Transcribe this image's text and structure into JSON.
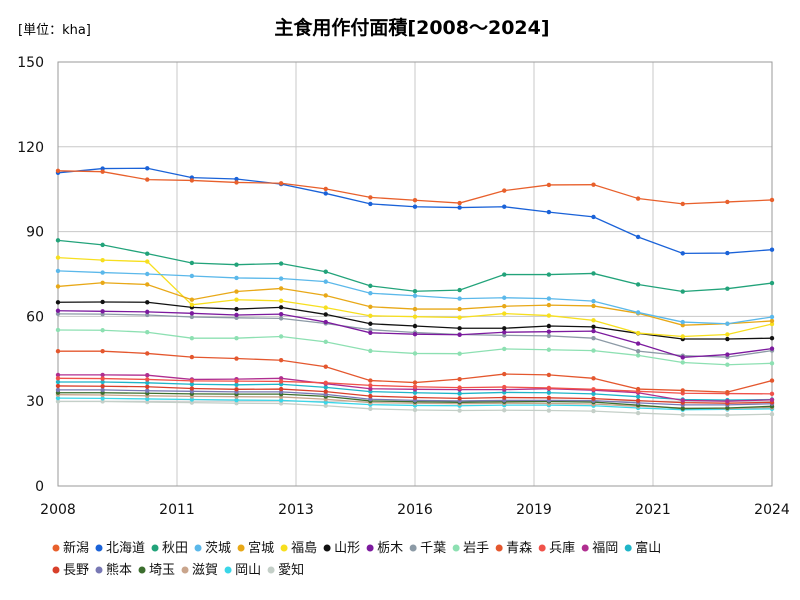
{
  "chart_data": {
    "type": "line",
    "title": "主食用作付面積[2008～2024]",
    "unit_label": "[単位：kha]",
    "x_ticks": [
      "2008",
      "2011",
      "2013",
      "2016",
      "2019",
      "2021",
      "2024"
    ],
    "x": [
      2008,
      2009,
      2010,
      2011,
      2012,
      2013,
      2014,
      2015,
      2016,
      2017,
      2018,
      2019,
      2020,
      2021,
      2022,
      2023,
      2024
    ],
    "xlim": [
      2008,
      2024
    ],
    "y_ticks": [
      "0",
      "30",
      "60",
      "90",
      "120",
      "150"
    ],
    "ylim": [
      0,
      150
    ],
    "grid": true,
    "legend_position": "bottom",
    "series": [
      {
        "name": "新潟",
        "color": "#e8602c",
        "values": [
          111.5,
          111.2,
          108.4,
          108.1,
          107.4,
          107.1,
          105.1,
          102.1,
          101.1,
          100.1,
          104.5,
          106.5,
          106.6,
          101.7,
          99.8,
          100.5,
          101.2
        ]
      },
      {
        "name": "北海道",
        "color": "#1a62d8",
        "values": [
          110.8,
          112.3,
          112.4,
          109.1,
          108.6,
          106.8,
          103.5,
          99.8,
          98.8,
          98.5,
          98.8,
          96.9,
          95.2,
          88.1,
          82.3,
          82.4,
          83.6
        ]
      },
      {
        "name": "秋田",
        "color": "#22a37a",
        "values": [
          86.9,
          85.3,
          82.2,
          78.9,
          78.3,
          78.7,
          75.8,
          70.8,
          68.9,
          69.3,
          74.8,
          74.8,
          75.2,
          71.3,
          68.8,
          69.8,
          71.8
        ]
      },
      {
        "name": "茨城",
        "color": "#5bb8ea",
        "values": [
          76.1,
          75.5,
          75.0,
          74.3,
          73.6,
          73.4,
          72.3,
          68.2,
          67.3,
          66.3,
          66.6,
          66.3,
          65.4,
          61.4,
          58.0,
          57.4,
          59.8
        ]
      },
      {
        "name": "宮城",
        "color": "#e8a817",
        "values": [
          70.6,
          71.9,
          71.3,
          65.9,
          68.8,
          69.9,
          67.4,
          63.4,
          62.6,
          62.6,
          63.6,
          64.0,
          63.7,
          61.1,
          56.9,
          57.4,
          58.4
        ]
      },
      {
        "name": "福島",
        "color": "#f7df1e",
        "values": [
          80.8,
          79.9,
          79.4,
          64.1,
          65.9,
          65.5,
          63.1,
          60.2,
          59.9,
          59.6,
          61.0,
          60.3,
          58.6,
          54.1,
          52.9,
          53.6,
          57.3
        ]
      },
      {
        "name": "山形",
        "color": "#111111",
        "values": [
          65.0,
          65.1,
          65.0,
          63.2,
          62.6,
          63.2,
          60.7,
          57.4,
          56.6,
          55.8,
          55.8,
          56.6,
          56.3,
          54.0,
          52.0,
          52.0,
          52.3
        ]
      },
      {
        "name": "栃木",
        "color": "#7c1a9e",
        "values": [
          62.0,
          61.8,
          61.6,
          61.1,
          60.5,
          60.8,
          58.0,
          54.2,
          53.7,
          53.5,
          54.4,
          54.6,
          54.8,
          50.4,
          45.5,
          46.5,
          48.6
        ]
      },
      {
        "name": "千葉",
        "color": "#8c9aa6",
        "values": [
          60.9,
          60.8,
          60.5,
          59.8,
          59.5,
          59.3,
          57.5,
          55.3,
          54.3,
          53.6,
          53.3,
          53.1,
          52.3,
          47.7,
          46.1,
          45.6,
          47.9
        ]
      },
      {
        "name": "岩手",
        "color": "#8de0b2",
        "values": [
          55.2,
          55.1,
          54.4,
          52.3,
          52.3,
          52.9,
          51.0,
          47.8,
          46.9,
          46.8,
          48.5,
          48.2,
          47.9,
          46.2,
          43.7,
          42.9,
          43.4
        ]
      },
      {
        "name": "青森",
        "color": "#e4572e",
        "values": [
          47.7,
          47.7,
          46.9,
          45.6,
          45.1,
          44.5,
          42.2,
          37.3,
          36.6,
          37.8,
          39.6,
          39.3,
          38.1,
          34.3,
          33.8,
          33.2,
          37.3
        ]
      },
      {
        "name": "兵庫",
        "color": "#f0524a",
        "values": [
          38.1,
          38.0,
          37.7,
          37.2,
          37.1,
          37.0,
          36.5,
          35.6,
          35.1,
          34.8,
          35.0,
          34.7,
          34.2,
          33.5,
          32.8,
          32.7,
          32.6
        ]
      },
      {
        "name": "福岡",
        "color": "#b02e90",
        "values": [
          39.3,
          39.3,
          39.2,
          37.7,
          37.8,
          38.1,
          36.2,
          34.4,
          34.2,
          34.1,
          34.1,
          34.4,
          33.9,
          33.0,
          30.3,
          30.0,
          30.5
        ]
      },
      {
        "name": "富山",
        "color": "#1fb5c8",
        "values": [
          36.8,
          36.8,
          36.5,
          36.0,
          35.8,
          36.0,
          34.9,
          33.4,
          33.0,
          32.7,
          33.1,
          33.0,
          32.6,
          31.6,
          30.6,
          30.4,
          30.6
        ]
      },
      {
        "name": "長野",
        "color": "#d8402a",
        "values": [
          35.4,
          35.3,
          35.1,
          34.5,
          34.2,
          34.3,
          33.4,
          31.8,
          31.3,
          31.0,
          31.3,
          31.2,
          30.9,
          30.2,
          29.5,
          29.3,
          29.6
        ]
      },
      {
        "name": "熊本",
        "color": "#7878b4",
        "values": [
          34.0,
          34.0,
          33.7,
          33.5,
          33.3,
          33.3,
          32.4,
          30.7,
          30.3,
          30.1,
          30.3,
          30.3,
          30.2,
          29.4,
          28.7,
          28.7,
          29.1
        ]
      },
      {
        "name": "埼玉",
        "color": "#3c6e2e",
        "values": [
          33.0,
          33.0,
          32.8,
          32.6,
          32.5,
          32.5,
          31.7,
          30.1,
          29.8,
          29.6,
          29.8,
          29.9,
          29.7,
          28.6,
          27.4,
          27.6,
          28.2
        ]
      },
      {
        "name": "滋賀",
        "color": "#c9a58c",
        "values": [
          32.3,
          32.2,
          31.9,
          31.7,
          31.6,
          31.5,
          30.7,
          29.5,
          29.3,
          29.1,
          29.3,
          29.2,
          29.0,
          28.2,
          27.6,
          27.4,
          27.8
        ]
      },
      {
        "name": "岡山",
        "color": "#3ad6e8",
        "values": [
          31.1,
          31.0,
          30.8,
          30.6,
          30.4,
          30.3,
          29.6,
          28.8,
          28.5,
          28.4,
          28.6,
          28.6,
          28.4,
          27.6,
          27.0,
          27.1,
          27.3
        ]
      },
      {
        "name": "愛知",
        "color": "#c4cfc8",
        "values": [
          29.9,
          29.9,
          29.7,
          29.5,
          29.3,
          29.2,
          28.4,
          27.3,
          26.9,
          26.7,
          26.8,
          26.7,
          26.5,
          25.8,
          25.2,
          25.1,
          25.4
        ]
      }
    ]
  }
}
